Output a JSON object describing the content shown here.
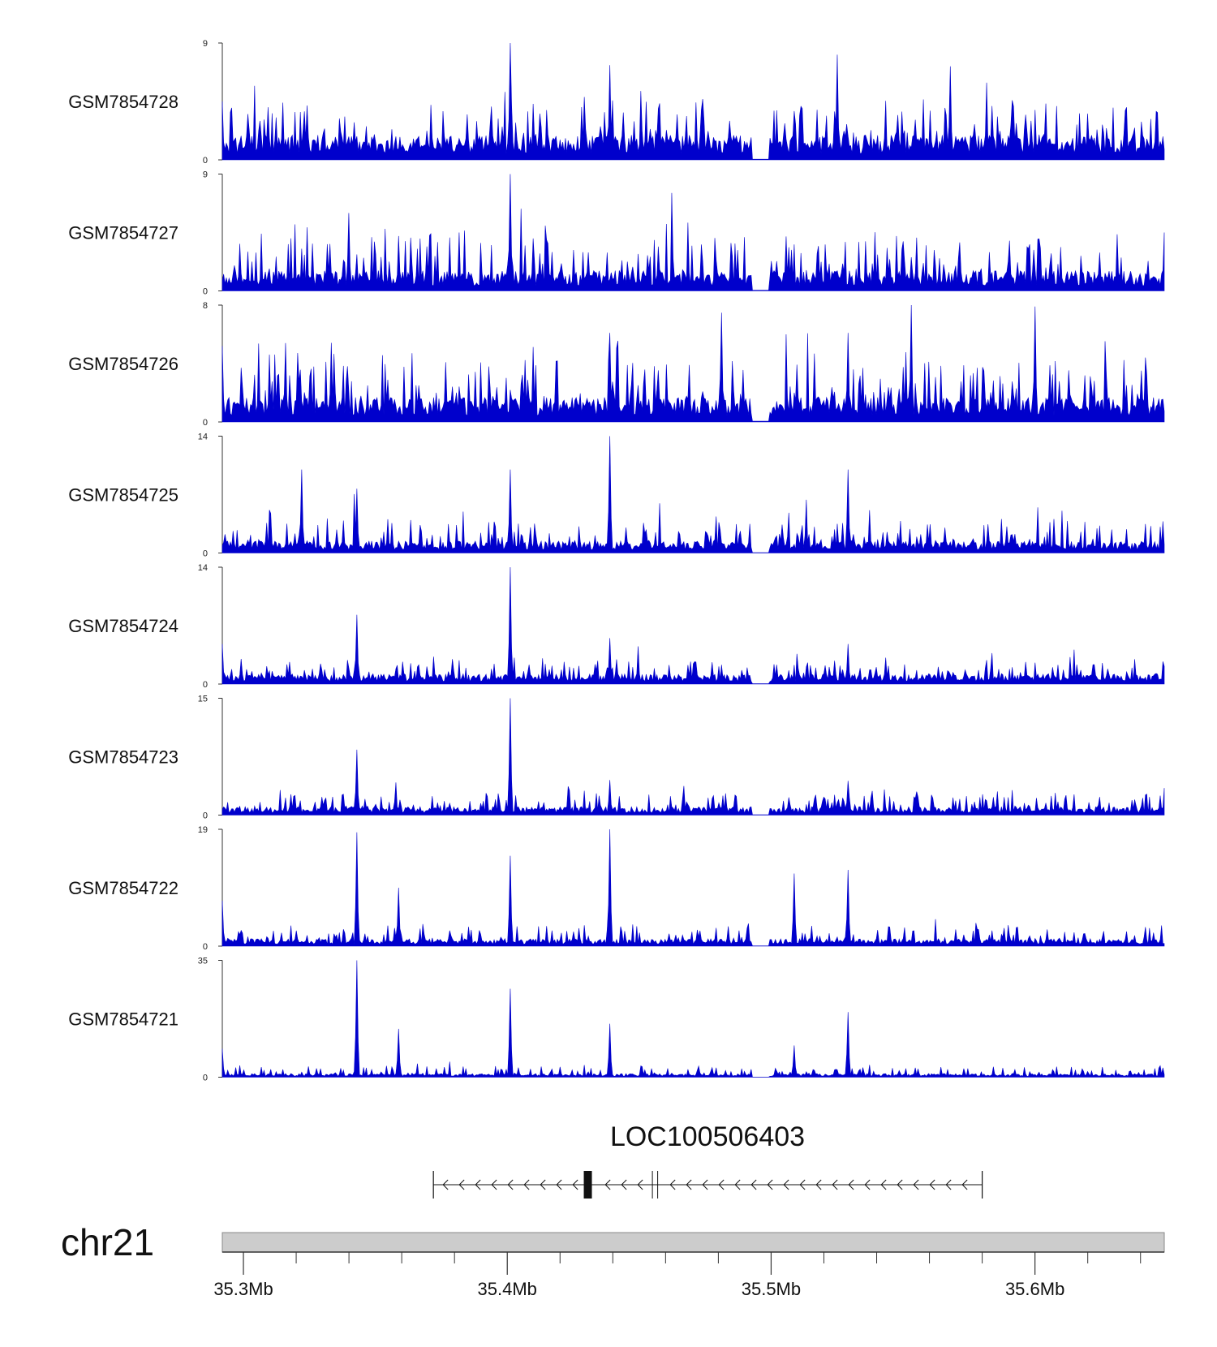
{
  "chart_data": {
    "type": "area",
    "title": "",
    "xlabel": "",
    "ylabel": "",
    "chromosome": "chr21",
    "xlim": [
      35.292,
      35.649
    ],
    "x_unit": "Mb",
    "x_ticks": [
      {
        "value": 35.3,
        "label": "35.3Mb"
      },
      {
        "value": 35.4,
        "label": "35.4Mb"
      },
      {
        "value": 35.5,
        "label": "35.5Mb"
      },
      {
        "value": 35.6,
        "label": "35.6Mb"
      }
    ],
    "x_minor_ticks": [
      35.32,
      35.34,
      35.36,
      35.38,
      35.42,
      35.44,
      35.46,
      35.48,
      35.52,
      35.54,
      35.56,
      35.58,
      35.62,
      35.64
    ],
    "bar_color": "#0000cc",
    "chromosome_band_color": "#cccccc",
    "tracks": [
      {
        "name": "GSM7854728",
        "ymin": 0,
        "ymax": 9,
        "baseline": 1.6,
        "noise": 3.2,
        "peaks": [
          [
            35.401,
            9.0
          ],
          [
            35.439,
            7.3
          ],
          [
            35.525,
            8.1
          ],
          [
            35.568,
            7.2
          ],
          [
            35.292,
            4.5
          ]
        ]
      },
      {
        "name": "GSM7854727",
        "ymin": 0,
        "ymax": 9,
        "baseline": 1.3,
        "noise": 3.3,
        "peaks": [
          [
            35.401,
            9.0
          ],
          [
            35.34,
            6.0
          ],
          [
            35.649,
            4.5
          ]
        ]
      },
      {
        "name": "GSM7854726",
        "ymin": 0,
        "ymax": 8,
        "baseline": 1.4,
        "noise": 3.3,
        "peaks": [
          [
            35.553,
            8.0
          ],
          [
            35.6,
            7.9
          ],
          [
            35.439,
            6.1
          ],
          [
            35.529,
            6.1
          ],
          [
            35.316,
            5.4
          ],
          [
            35.292,
            5.2
          ]
        ]
      },
      {
        "name": "GSM7854725",
        "ymin": 0,
        "ymax": 14,
        "baseline": 1.2,
        "noise": 3.0,
        "peaks": [
          [
            35.439,
            14.0
          ],
          [
            35.529,
            10.0
          ],
          [
            35.401,
            10.0
          ],
          [
            35.322,
            10.0
          ],
          [
            35.343,
            7.7
          ]
        ]
      },
      {
        "name": "GSM7854724",
        "ymin": 0,
        "ymax": 14,
        "baseline": 1.0,
        "noise": 2.0,
        "peaks": [
          [
            35.401,
            14.0
          ],
          [
            35.343,
            8.3
          ],
          [
            35.439,
            5.5
          ],
          [
            35.529,
            4.8
          ],
          [
            35.292,
            4.8
          ]
        ]
      },
      {
        "name": "GSM7854723",
        "ymin": 0,
        "ymax": 15,
        "baseline": 0.9,
        "noise": 2.0,
        "peaks": [
          [
            35.401,
            15.0
          ],
          [
            35.343,
            8.4
          ],
          [
            35.439,
            4.5
          ],
          [
            35.529,
            4.4
          ]
        ]
      },
      {
        "name": "GSM7854722",
        "ymin": 0,
        "ymax": 19,
        "baseline": 1.0,
        "noise": 2.4,
        "peaks": [
          [
            35.343,
            18.5
          ],
          [
            35.439,
            19.0
          ],
          [
            35.401,
            14.7
          ],
          [
            35.529,
            12.4
          ],
          [
            35.509,
            11.8
          ],
          [
            35.359,
            9.5
          ],
          [
            35.292,
            7.4
          ]
        ]
      },
      {
        "name": "GSM7854721",
        "ymin": 0,
        "ymax": 35,
        "baseline": 0.9,
        "noise": 2.5,
        "peaks": [
          [
            35.343,
            35.0
          ],
          [
            35.401,
            26.5
          ],
          [
            35.529,
            19.5
          ],
          [
            35.439,
            16.0
          ],
          [
            35.359,
            14.5
          ],
          [
            35.509,
            9.5
          ],
          [
            35.292,
            8.5
          ]
        ]
      }
    ],
    "gene": {
      "name": "LOC100506403",
      "strand": "-",
      "start": 35.372,
      "end": 35.58,
      "exons": [
        [
          35.429,
          35.432
        ]
      ],
      "splice_marks": [
        35.455,
        35.457
      ],
      "color": "#111111"
    }
  }
}
